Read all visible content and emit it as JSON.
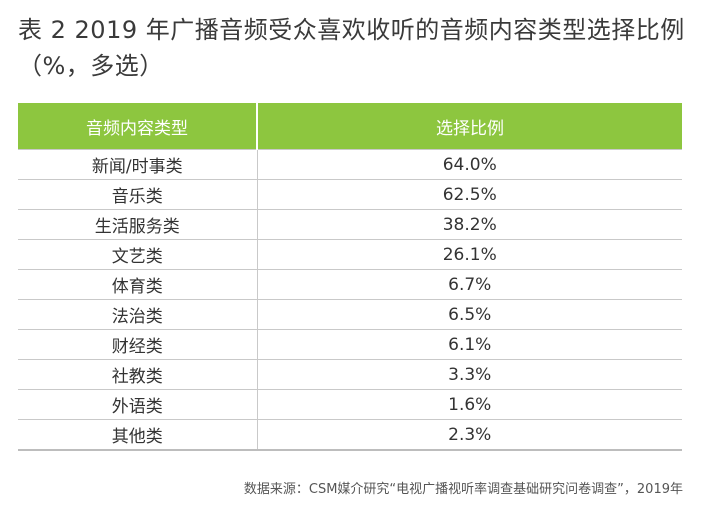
{
  "title": "表 2  2019 年广播音频受众喜欢收听的音频内容类型选择比例（%，多选）",
  "table": {
    "headers": [
      "音频内容类型",
      "选择比例"
    ],
    "rows": [
      {
        "type": "新闻/时事类",
        "value": "64.0%"
      },
      {
        "type": "音乐类",
        "value": "62.5%"
      },
      {
        "type": "生活服务类",
        "value": "38.2%"
      },
      {
        "type": "文艺类",
        "value": "26.1%"
      },
      {
        "type": "体育类",
        "value": "6.7%"
      },
      {
        "type": "法治类",
        "value": "6.5%"
      },
      {
        "type": "财经类",
        "value": "6.1%"
      },
      {
        "type": "社教类",
        "value": "3.3%"
      },
      {
        "type": "外语类",
        "value": "1.6%"
      },
      {
        "type": "其他类",
        "value": "2.3%"
      }
    ]
  },
  "source": "数据来源：CSM媒介研究“电视广播视听率调查基础研究问卷调查”，2019年",
  "colors": {
    "header_bg": "#8dc63f",
    "header_text": "#ffffff"
  }
}
